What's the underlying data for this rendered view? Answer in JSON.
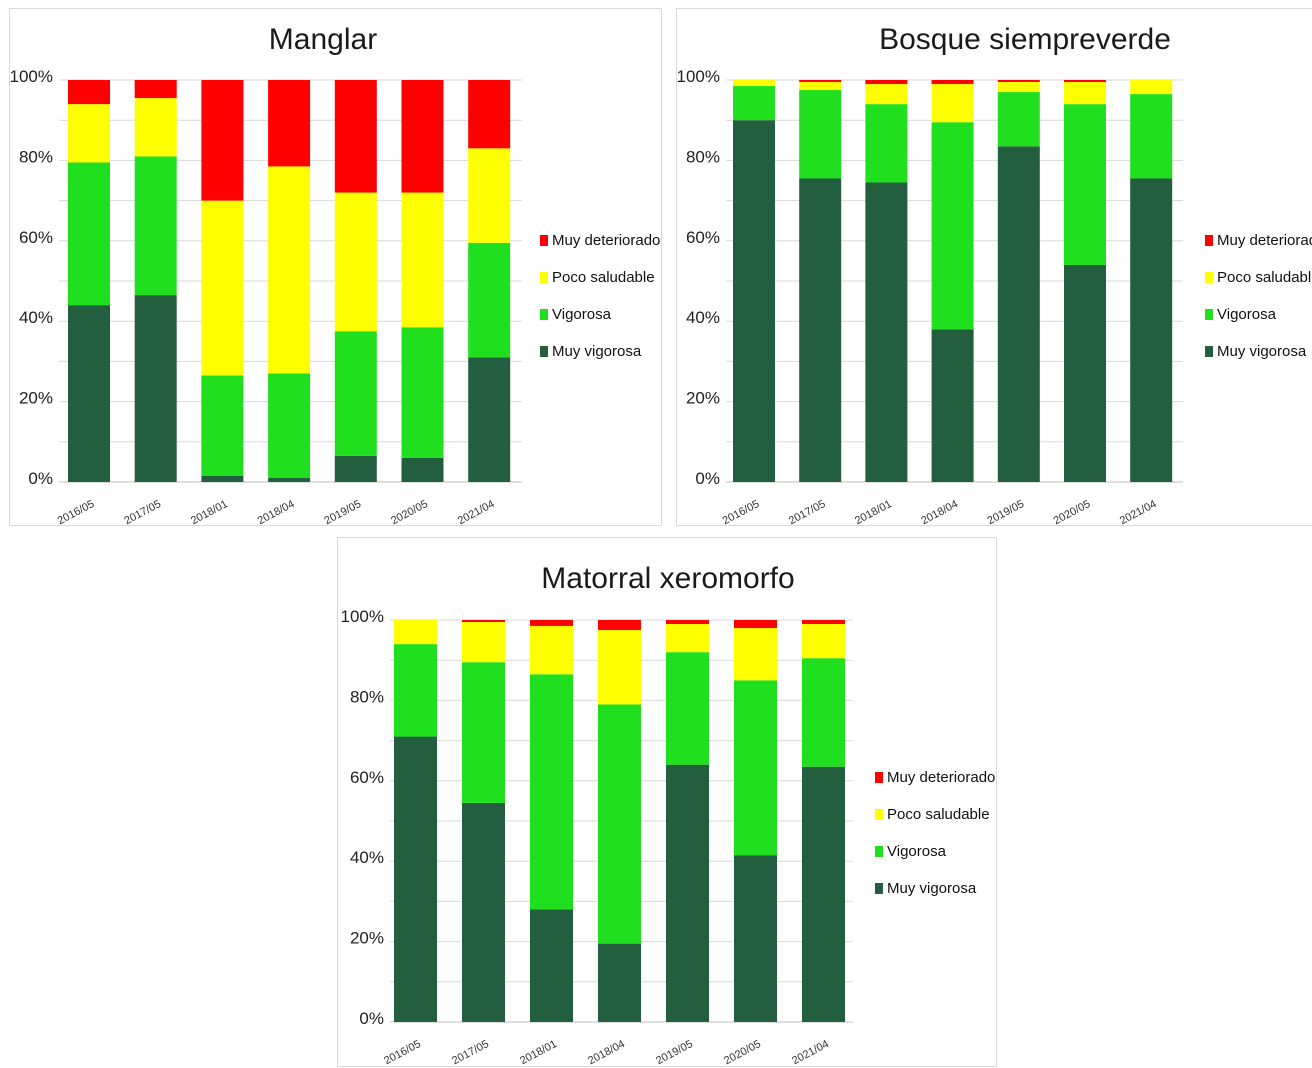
{
  "colors": {
    "muy_deteriorado": "#ff0000",
    "poco_saludable": "#ffff00",
    "vigorosa": "#1fdf1f",
    "muy_vigorosa": "#235f3f",
    "grid": "#d9d9d9",
    "axis": "#bfbfbf"
  },
  "chart_data": [
    {
      "type": "bar",
      "stacked": true,
      "title": "Manglar",
      "categories": [
        "2016/05",
        "2017/05",
        "2018/01",
        "2018/04",
        "2019/05",
        "2020/05",
        "2021/04"
      ],
      "ylim": [
        0,
        100
      ],
      "yticks": [
        "0%",
        "20%",
        "40%",
        "60%",
        "80%",
        "100%"
      ],
      "grid": true,
      "legend_position": "right",
      "series": [
        {
          "name": "Muy vigorosa",
          "color": "#235f3f",
          "values": [
            44,
            46.5,
            1.5,
            1,
            6.5,
            6,
            31
          ]
        },
        {
          "name": "Vigorosa",
          "color": "#1fdf1f",
          "values": [
            35.5,
            34.5,
            25,
            26,
            31,
            32.5,
            28.5
          ]
        },
        {
          "name": "Poco saludable",
          "color": "#ffff00",
          "values": [
            14.5,
            14.5,
            43.5,
            51.5,
            34.5,
            33.5,
            23.5
          ]
        },
        {
          "name": "Muy deteriorado",
          "color": "#ff0000",
          "values": [
            6,
            4.5,
            30,
            21.5,
            28,
            28,
            17
          ]
        }
      ],
      "legend": [
        "Muy deteriorado",
        "Poco saludable",
        "Vigorosa",
        "Muy vigorosa"
      ]
    },
    {
      "type": "bar",
      "stacked": true,
      "title": "Bosque siempreverde",
      "categories": [
        "2016/05",
        "2017/05",
        "2018/01",
        "2018/04",
        "2019/05",
        "2020/05",
        "2021/04"
      ],
      "ylim": [
        0,
        100
      ],
      "yticks": [
        "0%",
        "20%",
        "40%",
        "60%",
        "80%",
        "100%"
      ],
      "grid": true,
      "legend_position": "right",
      "series": [
        {
          "name": "Muy vigorosa",
          "color": "#235f3f",
          "values": [
            90,
            75.5,
            74.5,
            38,
            83.5,
            54,
            75.5
          ]
        },
        {
          "name": "Vigorosa",
          "color": "#1fdf1f",
          "values": [
            8.5,
            22,
            19.5,
            51.5,
            13.5,
            40,
            21
          ]
        },
        {
          "name": "Poco saludable",
          "color": "#ffff00",
          "values": [
            1.5,
            2,
            5,
            9.5,
            2.5,
            5.5,
            3.5
          ]
        },
        {
          "name": "Muy deteriorado",
          "color": "#ff0000",
          "values": [
            0,
            0.5,
            1,
            1.5,
            0.5,
            0.5,
            0
          ]
        }
      ],
      "legend": [
        "Muy deteriorado",
        "Poco saludable",
        "Vigorosa",
        "Muy vigorosa"
      ]
    },
    {
      "type": "bar",
      "stacked": true,
      "title": "Matorral xeromorfo",
      "categories": [
        "2016/05",
        "2017/05",
        "2018/01",
        "2018/04",
        "2019/05",
        "2020/05",
        "2021/04"
      ],
      "ylim": [
        0,
        100
      ],
      "yticks": [
        "0%",
        "20%",
        "40%",
        "60%",
        "80%",
        "100%"
      ],
      "grid": true,
      "legend_position": "right",
      "series": [
        {
          "name": "Muy vigorosa",
          "color": "#235f3f",
          "values": [
            71,
            54.5,
            28,
            19.5,
            64,
            41.5,
            63.5
          ]
        },
        {
          "name": "Vigorosa",
          "color": "#1fdf1f",
          "values": [
            23,
            35,
            58.5,
            59.5,
            28,
            43.5,
            27
          ]
        },
        {
          "name": "Poco saludable",
          "color": "#ffff00",
          "values": [
            6,
            10,
            12,
            18.5,
            7,
            13,
            8.5
          ]
        },
        {
          "name": "Muy deteriorado",
          "color": "#ff0000",
          "values": [
            0.5,
            1,
            1.5,
            2.5,
            1,
            2,
            1
          ]
        }
      ],
      "legend": [
        "Muy deteriorado",
        "Poco saludable",
        "Vigorosa",
        "Muy vigorosa"
      ]
    }
  ]
}
